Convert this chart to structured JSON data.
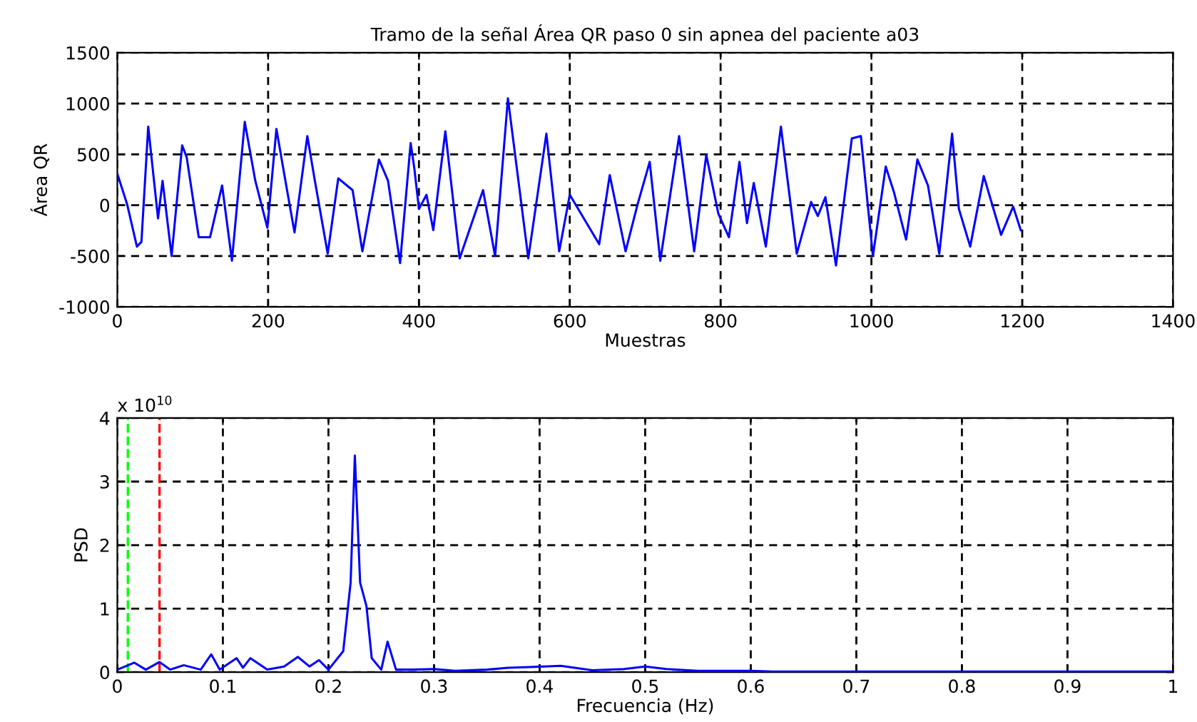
{
  "chart_data": [
    {
      "type": "line",
      "title": "Tramo de la señal Área QR paso 0 sin apnea del paciente a03",
      "xlabel": "Muestras",
      "ylabel": "Área QR",
      "xlim": [
        0,
        1400
      ],
      "xticks": [
        0,
        200,
        400,
        600,
        800,
        1000,
        1200,
        1400
      ],
      "ylim": [
        -1000,
        1500
      ],
      "yticks": [
        -1000,
        -500,
        0,
        500,
        1000,
        1500
      ],
      "grid": true,
      "line_style": "solid",
      "series": [
        {
          "color": "#0000ff",
          "x": [
            0,
            13,
            26,
            32,
            41,
            54,
            60,
            72,
            86,
            92,
            108,
            123,
            139,
            152,
            169,
            183,
            199,
            211,
            224,
            235,
            252,
            262,
            279,
            293,
            312,
            325,
            347,
            359,
            375,
            389,
            394,
            400,
            410,
            419,
            435,
            454,
            485,
            501,
            518,
            545,
            569,
            586,
            600,
            639,
            653,
            674,
            690,
            706,
            720,
            745,
            765,
            781,
            797,
            811,
            825,
            835,
            844,
            860,
            880,
            901,
            920,
            929,
            939,
            953,
            974,
            986,
            1002,
            1019,
            1030,
            1046,
            1061,
            1075,
            1090,
            1107,
            1116,
            1131,
            1149,
            1172,
            1188,
            1198
          ],
          "values": [
            310,
            10,
            -407,
            -360,
            773,
            -130,
            240,
            -500,
            588,
            472,
            -315,
            -315,
            194,
            -546,
            820,
            240,
            -222,
            750,
            194,
            -268,
            680,
            240,
            -477,
            264,
            148,
            -454,
            449,
            240,
            -570,
            611,
            356,
            -37,
            102,
            -245,
            727,
            -523,
            148,
            -500,
            1051,
            -523,
            704,
            -454,
            102,
            -384,
            296,
            -454,
            10,
            426,
            -546,
            680,
            -454,
            495,
            -83,
            -315,
            426,
            -176,
            218,
            -407,
            773,
            -477,
            32,
            -106,
            79,
            -593,
            657,
            680,
            -500,
            380,
            125,
            -338,
            449,
            194,
            -477,
            704,
            -37,
            -407,
            287,
            -292,
            -14,
            -245
          ]
        }
      ]
    },
    {
      "type": "line",
      "xlabel": "Frecuencia (Hz)",
      "ylabel": "PSD",
      "annotations": [
        "x 10$^{10}$"
      ],
      "xlim": [
        0,
        1
      ],
      "xticks": [
        0,
        {
          "value": 0.1,
          "label": "0.1"
        },
        {
          "value": 0.2,
          "label": "0.2"
        },
        {
          "value": 0.3,
          "label": "0.3"
        },
        {
          "value": 0.4,
          "label": "0.4"
        },
        {
          "value": 0.5,
          "label": "0.5"
        },
        {
          "value": 0.6,
          "label": "0.6"
        },
        {
          "value": 0.7,
          "label": "0.7"
        },
        {
          "value": 0.8,
          "label": "0.8"
        },
        {
          "value": 0.9,
          "label": "0.9"
        },
        1
      ],
      "ylim": [
        0,
        4
      ],
      "yticks": [
        0,
        1,
        2,
        3,
        4
      ],
      "grid": true,
      "line_style": "solid",
      "ref_lines": [
        {
          "axis": "x",
          "value": 0.01,
          "color": "#00ff00",
          "line_style": "dashed"
        },
        {
          "axis": "x",
          "value": 0.04,
          "color": "#ff0000",
          "line_style": "dashed"
        }
      ],
      "series": [
        {
          "color": "#0000ff",
          "x": [
            0,
            0.016,
            0.027,
            0.04,
            0.05,
            0.063,
            0.079,
            0.089,
            0.097,
            0.113,
            0.119,
            0.126,
            0.142,
            0.158,
            0.171,
            0.182,
            0.191,
            0.2,
            0.214,
            0.221,
            0.225,
            0.23,
            0.236,
            0.241,
            0.25,
            0.256,
            0.264,
            0.28,
            0.3,
            0.32,
            0.35,
            0.37,
            0.39,
            0.42,
            0.45,
            0.48,
            0.5,
            0.52,
            0.55,
            0.6,
            0.62,
            0.7,
            0.8,
            0.9,
            1
          ],
          "values": [
            0.04,
            0.15,
            0.04,
            0.16,
            0.04,
            0.11,
            0.04,
            0.28,
            0.04,
            0.22,
            0.07,
            0.22,
            0.04,
            0.09,
            0.24,
            0.09,
            0.19,
            0.04,
            0.33,
            1.41,
            3.41,
            1.41,
            1.04,
            0.22,
            0.04,
            0.48,
            0.04,
            0.04,
            0.05,
            0.02,
            0.04,
            0.07,
            0.08,
            0.1,
            0.03,
            0.05,
            0.09,
            0.05,
            0.02,
            0.02,
            0.01,
            0.01,
            0.01,
            0.01,
            0.01
          ]
        }
      ]
    }
  ]
}
